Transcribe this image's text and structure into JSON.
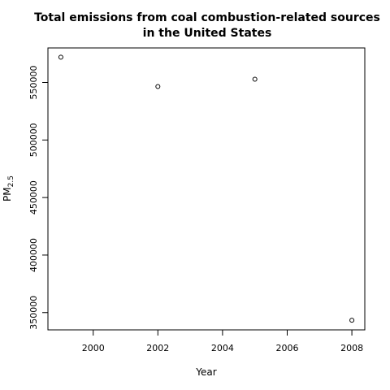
{
  "chart_data": {
    "type": "scatter",
    "title": "Total emissions from coal combustion-related sources",
    "subtitle": "in the United States",
    "xlabel": "Year",
    "ylabel": "PM",
    "ylabel_sub": "2.5",
    "x": [
      1999,
      2002,
      2005,
      2008
    ],
    "y": [
      572000,
      546500,
      552800,
      343400
    ],
    "xlim": [
      1998.6,
      2008.4
    ],
    "ylim": [
      335000,
      580000
    ],
    "xticks": [
      2000,
      2002,
      2004,
      2006,
      2008
    ],
    "yticks": [
      350000,
      400000,
      450000,
      500000,
      550000
    ],
    "xtick_labels": [
      "2000",
      "2002",
      "2004",
      "2006",
      "2008"
    ],
    "ytick_labels": [
      "350000",
      "400000",
      "450000",
      "500000",
      "550000"
    ],
    "grid": false,
    "marker": "open-circle"
  }
}
